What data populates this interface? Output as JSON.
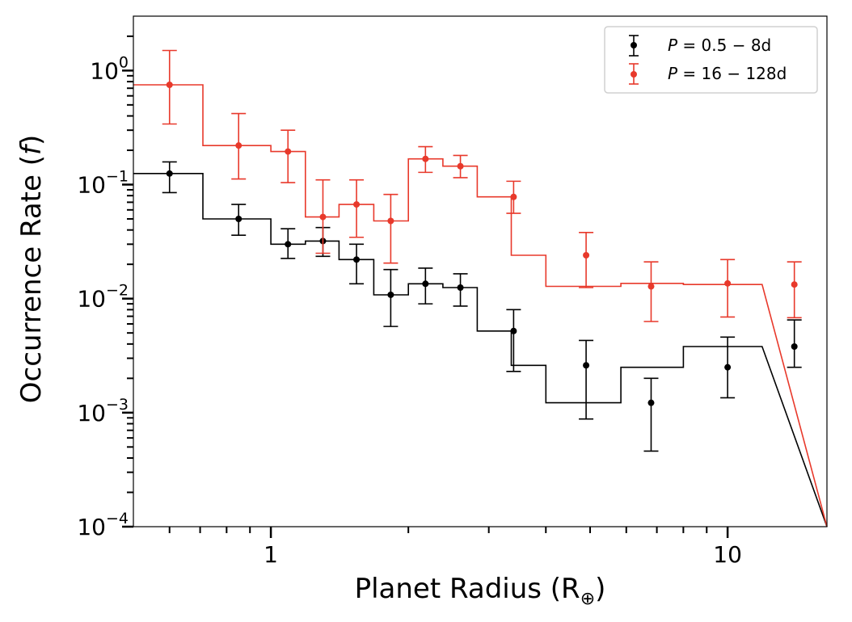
{
  "chart_data": {
    "type": "scatter",
    "title": "",
    "xlabel": "Planet Radius (R⊕)",
    "xlabel_main": "Planet Radius (R",
    "xlabel_sub": "⊕",
    "xlabel_close": ")",
    "ylabel": "Occurrence Rate (f)",
    "ylabel_main": "Occurrence Rate (",
    "ylabel_var": "f",
    "ylabel_close": ")",
    "xscale": "log",
    "yscale": "log",
    "xlim": [
      0.5,
      16.5
    ],
    "ylim": [
      0.0001,
      3.0
    ],
    "x_ticks": [
      {
        "value": 1,
        "label": "1"
      },
      {
        "value": 10,
        "label": "10"
      }
    ],
    "y_ticks": [
      {
        "value": 0.0001,
        "base": "10",
        "exp": "−4"
      },
      {
        "value": 0.001,
        "base": "10",
        "exp": "−3"
      },
      {
        "value": 0.01,
        "base": "10",
        "exp": "−2"
      },
      {
        "value": 0.1,
        "base": "10",
        "exp": "−1"
      },
      {
        "value": 1,
        "base": "10",
        "exp": "0"
      }
    ],
    "legend": {
      "position": "top-right",
      "entries": [
        {
          "series": 0,
          "label_var": "P",
          "label_rest": " = 0.5 − 8d"
        },
        {
          "series": 1,
          "label_var": "P",
          "label_rest": " = 16 − 128d"
        }
      ]
    },
    "series": [
      {
        "name": "P = 0.5 - 8d",
        "color": "#000000",
        "bin_edges": [
          0.5,
          0.71,
          1.0,
          1.19,
          1.41,
          1.68,
          2.0,
          2.38,
          2.83,
          3.36,
          4.0,
          5.84,
          8.0,
          11.9,
          16.5
        ],
        "step_values": [
          0.125,
          0.05,
          0.03,
          0.032,
          0.022,
          0.0108,
          0.0135,
          0.0125,
          0.0052,
          0.0026,
          0.00122,
          0.0025,
          0.0038
        ],
        "points": [
          {
            "x": 0.6,
            "y": 0.125,
            "lo": 0.085,
            "hi": 0.158
          },
          {
            "x": 0.85,
            "y": 0.05,
            "lo": 0.036,
            "hi": 0.067
          },
          {
            "x": 1.09,
            "y": 0.03,
            "lo": 0.0225,
            "hi": 0.041
          },
          {
            "x": 1.3,
            "y": 0.032,
            "lo": 0.0235,
            "hi": 0.042
          },
          {
            "x": 1.54,
            "y": 0.022,
            "lo": 0.0135,
            "hi": 0.03
          },
          {
            "x": 1.83,
            "y": 0.0108,
            "lo": 0.0057,
            "hi": 0.018
          },
          {
            "x": 2.18,
            "y": 0.0135,
            "lo": 0.009,
            "hi": 0.0185
          },
          {
            "x": 2.6,
            "y": 0.0125,
            "lo": 0.0086,
            "hi": 0.0165
          },
          {
            "x": 3.4,
            "y": 0.0052,
            "lo": 0.0023,
            "hi": 0.008
          },
          {
            "x": 4.9,
            "y": 0.0026,
            "lo": 0.00088,
            "hi": 0.0043
          },
          {
            "x": 6.8,
            "y": 0.00122,
            "lo": 0.00046,
            "hi": 0.002
          },
          {
            "x": 10.0,
            "y": 0.0025,
            "lo": 0.00135,
            "hi": 0.0046
          },
          {
            "x": 14.0,
            "y": 0.0038,
            "lo": 0.0025,
            "hi": 0.0065
          }
        ]
      },
      {
        "name": "P = 16 - 128d",
        "color": "#e8392b",
        "bin_edges": [
          0.5,
          0.71,
          1.0,
          1.19,
          1.41,
          1.68,
          2.0,
          2.38,
          2.83,
          3.36,
          4.0,
          5.84,
          8.0,
          11.9,
          16.5
        ],
        "step_values": [
          0.75,
          0.22,
          0.195,
          0.052,
          0.067,
          0.048,
          0.168,
          0.145,
          0.078,
          0.024,
          0.0128,
          0.0136,
          0.0133
        ],
        "points": [
          {
            "x": 0.6,
            "y": 0.75,
            "lo": 0.34,
            "hi": 1.5
          },
          {
            "x": 0.85,
            "y": 0.22,
            "lo": 0.112,
            "hi": 0.42
          },
          {
            "x": 1.09,
            "y": 0.195,
            "lo": 0.104,
            "hi": 0.3
          },
          {
            "x": 1.3,
            "y": 0.052,
            "lo": 0.025,
            "hi": 0.11
          },
          {
            "x": 1.54,
            "y": 0.067,
            "lo": 0.0345,
            "hi": 0.11
          },
          {
            "x": 1.83,
            "y": 0.048,
            "lo": 0.0205,
            "hi": 0.082
          },
          {
            "x": 2.18,
            "y": 0.168,
            "lo": 0.128,
            "hi": 0.215
          },
          {
            "x": 2.6,
            "y": 0.145,
            "lo": 0.115,
            "hi": 0.18
          },
          {
            "x": 3.4,
            "y": 0.078,
            "lo": 0.056,
            "hi": 0.107
          },
          {
            "x": 4.9,
            "y": 0.024,
            "lo": 0.0125,
            "hi": 0.038
          },
          {
            "x": 6.8,
            "y": 0.0128,
            "lo": 0.0063,
            "hi": 0.021
          },
          {
            "x": 10.0,
            "y": 0.0136,
            "lo": 0.0069,
            "hi": 0.022
          },
          {
            "x": 14.0,
            "y": 0.0133,
            "lo": 0.0068,
            "hi": 0.021
          }
        ]
      }
    ]
  }
}
